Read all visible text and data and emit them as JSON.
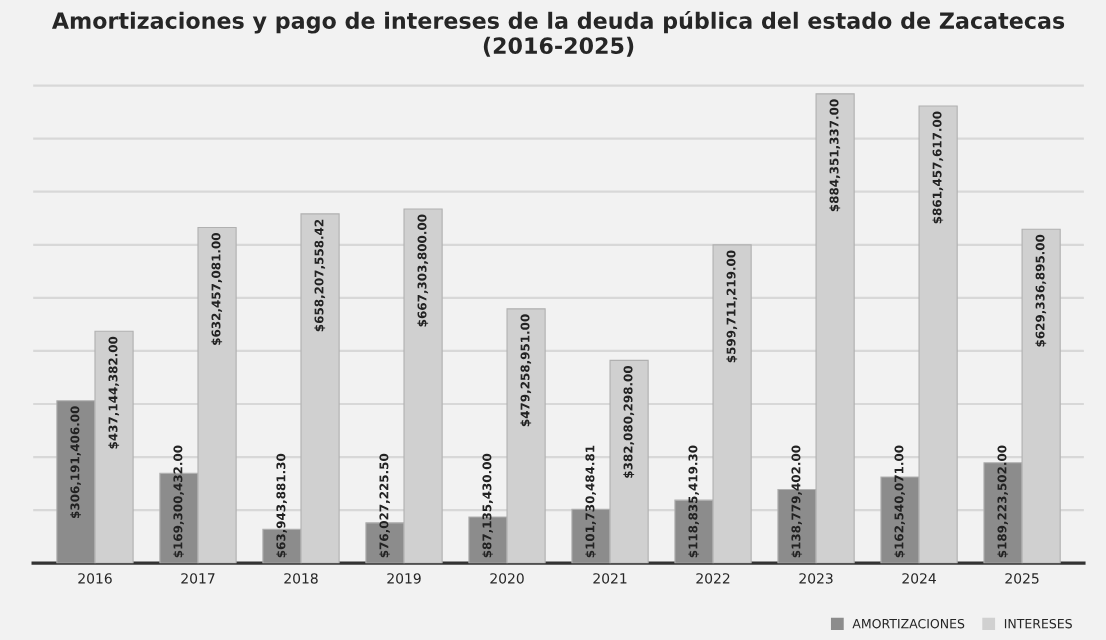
{
  "chart_data": {
    "type": "bar",
    "title": "Amortizaciones y pago de intereses de la deuda pública del estado de Zacatecas\n(2016-2025)",
    "categories": [
      "2016",
      "2017",
      "2018",
      "2019",
      "2020",
      "2021",
      "2022",
      "2023",
      "2024",
      "2025"
    ],
    "series": [
      {
        "name": "AMORTIZACIONES",
        "color": "#8c8c8c",
        "values": [
          306191406.0,
          169300432.0,
          63943881.3,
          76027225.5,
          87135430.0,
          101730484.81,
          118835419.3,
          138779402.0,
          162540071.0,
          189223502.0
        ],
        "value_labels": [
          "$306,191,406.00",
          "$169,300,432.00",
          "$63,943,881.30",
          "$76,027,225.50",
          "$87,135,430.00",
          "$101,730,484.81",
          "$118,835,419.30",
          "$138,779,402.00",
          "$162,540,071.00",
          "$189,223,502.00"
        ]
      },
      {
        "name": "INTERESES",
        "color": "#d0d0d0",
        "values": [
          437144382.0,
          632457081.0,
          658207558.42,
          667303800.0,
          479258951.0,
          382080298.0,
          599711219.0,
          884351337.0,
          861457617.0,
          629336895.0
        ],
        "value_labels": [
          "$437,144,382.00",
          "$632,457,081.00",
          "$658,207,558.42",
          "$667,303,800.00",
          "$479,258,951.00",
          "$382,080,298.00",
          "$599,711,219.00",
          "$884,351,337.00",
          "$861,457,617.00",
          "$629,336,895.00"
        ]
      }
    ],
    "tick_labels": "x",
    "grid": "y",
    "legend": "bottom right"
  }
}
